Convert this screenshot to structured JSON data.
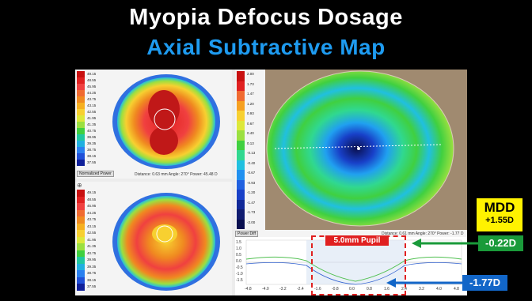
{
  "title": "Myopia Defocus Dosage",
  "subtitle": "Axial Subtractive Map",
  "left_scale": [
    "49.15",
    "48.55",
    "45.95",
    "44.25",
    "43.75",
    "43.15",
    "42.55",
    "41.95",
    "41.35",
    "40.75",
    "39.95",
    "39.35",
    "38.75",
    "38.15",
    "37.55"
  ],
  "left_colors": [
    "#c81010",
    "#e02020",
    "#f04040",
    "#f06a30",
    "#f08a20",
    "#f6b020",
    "#f7d030",
    "#dde83a",
    "#9be040",
    "#40d040",
    "#20c8a0",
    "#20b0e0",
    "#2a80f0",
    "#2050d8",
    "#10209a"
  ],
  "right_scale": [
    "2.00",
    "1.73",
    "1.47",
    "1.20",
    "0.93",
    "0.67",
    "0.40",
    "0.13",
    "-0.13",
    "-0.40",
    "-0.67",
    "-0.93",
    "-1.20",
    "-1.47",
    "-1.73",
    "-2.00"
  ],
  "right_colors": [
    "#c81010",
    "#e02020",
    "#f06a30",
    "#f6a020",
    "#f7d030",
    "#dde83a",
    "#9be040",
    "#40d040",
    "#30d890",
    "#20c0e0",
    "#2090f0",
    "#2060e0",
    "#1840c8",
    "#102898",
    "#101c70",
    "#0a1050"
  ],
  "normalized_power_label": "Normalized Power",
  "power_diff_label": "Power Diff",
  "status_top": "Distance: 0.63 mm   Angle: 270°   Power: 45.48 D",
  "status_right": "Distance: 0.61 mm   Angle: 270°   Power: -1.77 D",
  "pupil_label": "5.0mm Pupil",
  "mdd_label": "MDD",
  "mdd_value": "+1.55D",
  "green_value": "-0.22D",
  "blue_value": "-1.77D",
  "profile_y_ticks": [
    "1.5",
    "1.0",
    "0.5",
    "0.0",
    "-0.5",
    "-1.0",
    "-1.5"
  ],
  "profile_x_ticks": [
    "-4.8",
    "-4.0",
    "-3.2",
    "-2.4",
    "-1.6",
    "-0.8",
    "0.0",
    "0.8",
    "1.6",
    "2.4",
    "3.2",
    "4.0",
    "4.8"
  ],
  "colors": {
    "title": "#ffffff",
    "subtitle": "#1e9bf0",
    "mdd_bg": "#fff200",
    "green_tag": "#1a9a3a",
    "blue_tag": "#1266c8",
    "pupil_box": "#e02020"
  }
}
